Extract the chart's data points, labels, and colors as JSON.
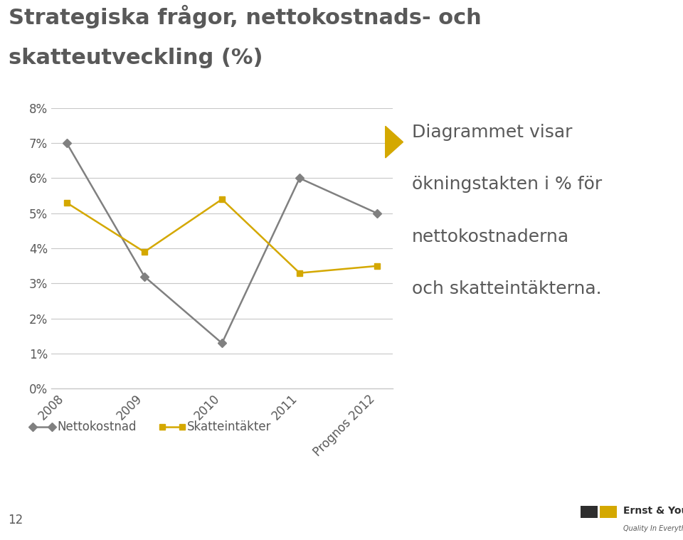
{
  "title_line1": "Strategiska frågor, nettokostnads- och",
  "title_line2": "skatteutveckling (%)",
  "categories": [
    "2008",
    "2009",
    "2010",
    "2011",
    "Prognos 2012"
  ],
  "nettokostnad": [
    7.0,
    3.2,
    1.3,
    6.0,
    5.0
  ],
  "skatteintakter": [
    5.3,
    3.9,
    5.4,
    3.3,
    3.5
  ],
  "nettokostnad_color": "#808080",
  "skatteintakter_color": "#D4A800",
  "ylim": [
    0,
    8
  ],
  "yticks": [
    0,
    1,
    2,
    3,
    4,
    5,
    6,
    7,
    8
  ],
  "ytick_labels": [
    "0%",
    "1%",
    "2%",
    "3%",
    "4%",
    "5%",
    "6%",
    "7%",
    "8%"
  ],
  "legend_nettokostnad": "Nettokostnad",
  "legend_skatteintakter": "Skatteintäkter",
  "annotation_lines": [
    "Diagrammet visar",
    "ökningstakten i % för",
    "nettokostnaderna",
    "och skatteintäkterna."
  ],
  "annotation_bullet_color": "#D4A800",
  "background_color": "#FFFFFF",
  "title_color": "#595959",
  "page_number": "12",
  "separator_color": "#D4A800",
  "axis_line_color": "#C8C8C8",
  "tick_label_color": "#595959",
  "annotation_text_color": "#595959"
}
